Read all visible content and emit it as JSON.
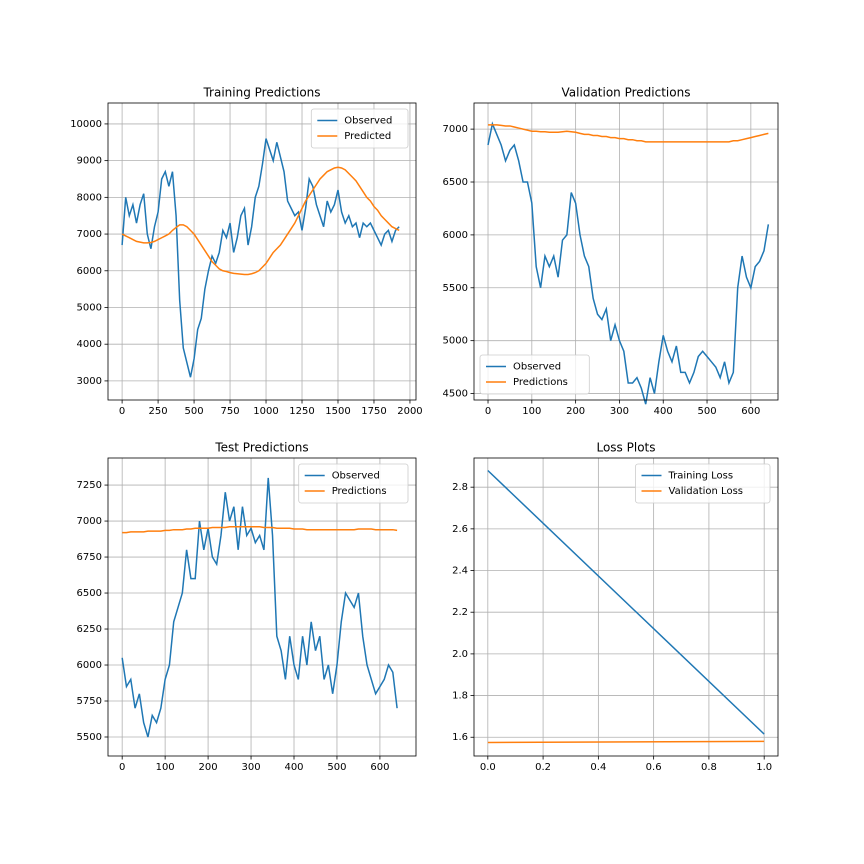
{
  "chart_data": [
    {
      "type": "line",
      "title": "Training Predictions",
      "x": [
        0,
        25,
        50,
        75,
        100,
        125,
        150,
        175,
        200,
        225,
        250,
        275,
        300,
        325,
        350,
        375,
        400,
        425,
        450,
        475,
        500,
        525,
        550,
        575,
        600,
        625,
        650,
        675,
        700,
        725,
        750,
        775,
        800,
        825,
        850,
        875,
        900,
        925,
        950,
        975,
        1000,
        1025,
        1050,
        1075,
        1100,
        1125,
        1150,
        1175,
        1200,
        1225,
        1250,
        1275,
        1300,
        1325,
        1350,
        1375,
        1400,
        1425,
        1450,
        1475,
        1500,
        1525,
        1550,
        1575,
        1600,
        1625,
        1650,
        1675,
        1700,
        1725,
        1750,
        1775,
        1800,
        1825,
        1850,
        1875,
        1900,
        1925
      ],
      "series": [
        {
          "name": "Observed",
          "color": "#1f77b4",
          "values": [
            6700,
            8000,
            7500,
            7800,
            7300,
            7800,
            8100,
            7000,
            6600,
            7200,
            7600,
            8500,
            8700,
            8300,
            8700,
            7500,
            5200,
            3900,
            3500,
            3100,
            3600,
            4400,
            4700,
            5500,
            6000,
            6400,
            6200,
            6500,
            7100,
            6900,
            7300,
            6500,
            6900,
            7500,
            7700,
            6700,
            7200,
            8000,
            8300,
            8900,
            9600,
            9300,
            9000,
            9500,
            9100,
            8700,
            7900,
            7700,
            7500,
            7600,
            7100,
            7700,
            8500,
            8300,
            7800,
            7500,
            7200,
            7900,
            7600,
            7800,
            8200,
            7600,
            7300,
            7500,
            7200,
            7300,
            6900,
            7300,
            7200,
            7300,
            7100,
            6900,
            6700,
            7000,
            7100,
            6800,
            7100,
            7200
          ]
        },
        {
          "name": "Predicted",
          "color": "#ff7f0e",
          "values": [
            7000,
            6950,
            6900,
            6850,
            6800,
            6780,
            6760,
            6760,
            6770,
            6800,
            6850,
            6900,
            6950,
            7000,
            7100,
            7180,
            7250,
            7250,
            7200,
            7100,
            7000,
            6850,
            6700,
            6550,
            6400,
            6250,
            6150,
            6050,
            6000,
            5980,
            5950,
            5930,
            5920,
            5910,
            5900,
            5900,
            5920,
            5950,
            6000,
            6100,
            6200,
            6350,
            6500,
            6600,
            6700,
            6850,
            7000,
            7150,
            7300,
            7500,
            7700,
            7900,
            8050,
            8200,
            8350,
            8500,
            8600,
            8700,
            8750,
            8800,
            8820,
            8800,
            8750,
            8650,
            8550,
            8450,
            8300,
            8150,
            8000,
            7900,
            7750,
            7650,
            7500,
            7400,
            7300,
            7200,
            7150,
            7100
          ]
        }
      ],
      "xlim": [
        -98,
        2042
      ],
      "ylim": [
        2480,
        10570
      ],
      "xticks": [
        0,
        250,
        500,
        750,
        1000,
        1250,
        1500,
        1750,
        2000
      ],
      "yticks": [
        3000,
        4000,
        5000,
        6000,
        7000,
        8000,
        9000,
        10000
      ],
      "grid": true,
      "legend": "upper right"
    },
    {
      "type": "line",
      "title": "Validation Predictions",
      "x": [
        0,
        10,
        20,
        30,
        40,
        50,
        60,
        70,
        80,
        90,
        100,
        110,
        120,
        130,
        140,
        150,
        160,
        170,
        180,
        190,
        200,
        210,
        220,
        230,
        240,
        250,
        260,
        270,
        280,
        290,
        300,
        310,
        320,
        330,
        340,
        350,
        360,
        370,
        380,
        390,
        400,
        410,
        420,
        430,
        440,
        450,
        460,
        470,
        480,
        490,
        500,
        510,
        520,
        530,
        540,
        550,
        560,
        570,
        580,
        590,
        600,
        610,
        620,
        630,
        640
      ],
      "series": [
        {
          "name": "Observed",
          "color": "#1f77b4",
          "values": [
            6850,
            7050,
            6950,
            6850,
            6700,
            6800,
            6850,
            6700,
            6500,
            6500,
            6300,
            5700,
            5500,
            5800,
            5700,
            5800,
            5600,
            5950,
            6000,
            6400,
            6300,
            6000,
            5800,
            5700,
            5400,
            5250,
            5200,
            5300,
            5000,
            5150,
            5000,
            4900,
            4600,
            4600,
            4650,
            4550,
            4400,
            4650,
            4500,
            4800,
            5050,
            4900,
            4800,
            4950,
            4700,
            4700,
            4600,
            4700,
            4850,
            4900,
            4850,
            4800,
            4750,
            4650,
            4800,
            4600,
            4700,
            5500,
            5800,
            5600,
            5500,
            5700,
            5750,
            5850,
            6100
          ]
        },
        {
          "name": "Predictions",
          "color": "#ff7f0e",
          "values": [
            7040,
            7040,
            7040,
            7035,
            7030,
            7030,
            7020,
            7010,
            7000,
            6990,
            6980,
            6980,
            6975,
            6975,
            6970,
            6970,
            6970,
            6975,
            6980,
            6975,
            6970,
            6960,
            6950,
            6950,
            6940,
            6940,
            6930,
            6930,
            6920,
            6920,
            6910,
            6910,
            6900,
            6900,
            6890,
            6890,
            6880,
            6880,
            6880,
            6880,
            6880,
            6880,
            6880,
            6880,
            6880,
            6880,
            6880,
            6880,
            6880,
            6880,
            6880,
            6880,
            6880,
            6880,
            6880,
            6880,
            6890,
            6890,
            6900,
            6910,
            6920,
            6930,
            6940,
            6950,
            6960
          ]
        }
      ],
      "xlim": [
        -32,
        662
      ],
      "ylim": [
        4439,
        7247
      ],
      "xticks": [
        0,
        100,
        200,
        300,
        400,
        500,
        600
      ],
      "yticks": [
        4500,
        5000,
        5500,
        6000,
        6500,
        7000
      ],
      "grid": true,
      "legend": "lower left"
    },
    {
      "type": "line",
      "title": "Test Predictions",
      "x": [
        0,
        10,
        20,
        30,
        40,
        50,
        60,
        70,
        80,
        90,
        100,
        110,
        120,
        130,
        140,
        150,
        160,
        170,
        180,
        190,
        200,
        210,
        220,
        230,
        240,
        250,
        260,
        270,
        280,
        290,
        300,
        310,
        320,
        330,
        340,
        350,
        360,
        370,
        380,
        390,
        400,
        410,
        420,
        430,
        440,
        450,
        460,
        470,
        480,
        490,
        500,
        510,
        520,
        530,
        540,
        550,
        560,
        570,
        580,
        590,
        600,
        610,
        620,
        630,
        640
      ],
      "series": [
        {
          "name": "Observed",
          "color": "#1f77b4",
          "values": [
            6050,
            5850,
            5900,
            5700,
            5800,
            5600,
            5500,
            5650,
            5600,
            5700,
            5900,
            6000,
            6300,
            6400,
            6500,
            6800,
            6600,
            6600,
            7000,
            6800,
            6950,
            6750,
            6700,
            6900,
            7200,
            7000,
            7100,
            6800,
            7100,
            6900,
            6950,
            6850,
            6900,
            6800,
            7300,
            6900,
            6200,
            6100,
            5900,
            6200,
            6000,
            5900,
            6200,
            6000,
            6300,
            6100,
            6200,
            5900,
            6000,
            5800,
            6000,
            6300,
            6500,
            6450,
            6400,
            6500,
            6200,
            6000,
            5900,
            5800,
            5850,
            5900,
            6000,
            5950,
            5700
          ]
        },
        {
          "name": "Predictions",
          "color": "#ff7f0e",
          "values": [
            6920,
            6920,
            6925,
            6925,
            6925,
            6925,
            6930,
            6930,
            6930,
            6930,
            6935,
            6935,
            6940,
            6940,
            6940,
            6945,
            6945,
            6950,
            6950,
            6950,
            6950,
            6955,
            6955,
            6955,
            6955,
            6960,
            6960,
            6960,
            6960,
            6960,
            6960,
            6960,
            6960,
            6955,
            6955,
            6955,
            6950,
            6950,
            6950,
            6950,
            6945,
            6945,
            6945,
            6940,
            6940,
            6940,
            6940,
            6940,
            6940,
            6940,
            6940,
            6940,
            6940,
            6940,
            6940,
            6945,
            6945,
            6945,
            6945,
            6940,
            6940,
            6940,
            6940,
            6940,
            6935
          ]
        }
      ],
      "xlim": [
        -33,
        684
      ],
      "ylim": [
        5368,
        7438
      ],
      "xticks": [
        0,
        100,
        200,
        300,
        400,
        500,
        600
      ],
      "yticks": [
        5500,
        5750,
        6000,
        6250,
        6500,
        6750,
        7000,
        7250
      ],
      "grid": true,
      "legend": "upper right"
    },
    {
      "type": "line",
      "title": "Loss Plots",
      "x": [
        0,
        1
      ],
      "series": [
        {
          "name": "Training Loss",
          "color": "#1f77b4",
          "values": [
            2.88,
            1.615
          ]
        },
        {
          "name": "Validation Loss",
          "color": "#ff7f0e",
          "values": [
            1.575,
            1.58
          ]
        }
      ],
      "xlim": [
        -0.05,
        1.05
      ],
      "ylim": [
        1.51,
        2.94
      ],
      "xticks": [
        {
          "value": 0,
          "label": "0.0"
        },
        0.2,
        0.4,
        0.6,
        0.8,
        {
          "value": 1,
          "label": "1.0"
        }
      ],
      "yticks": [
        1.6,
        1.8,
        {
          "value": 2,
          "label": "2.0"
        },
        2.2,
        2.4,
        2.6,
        2.8
      ],
      "grid": true,
      "legend": "upper right"
    }
  ]
}
